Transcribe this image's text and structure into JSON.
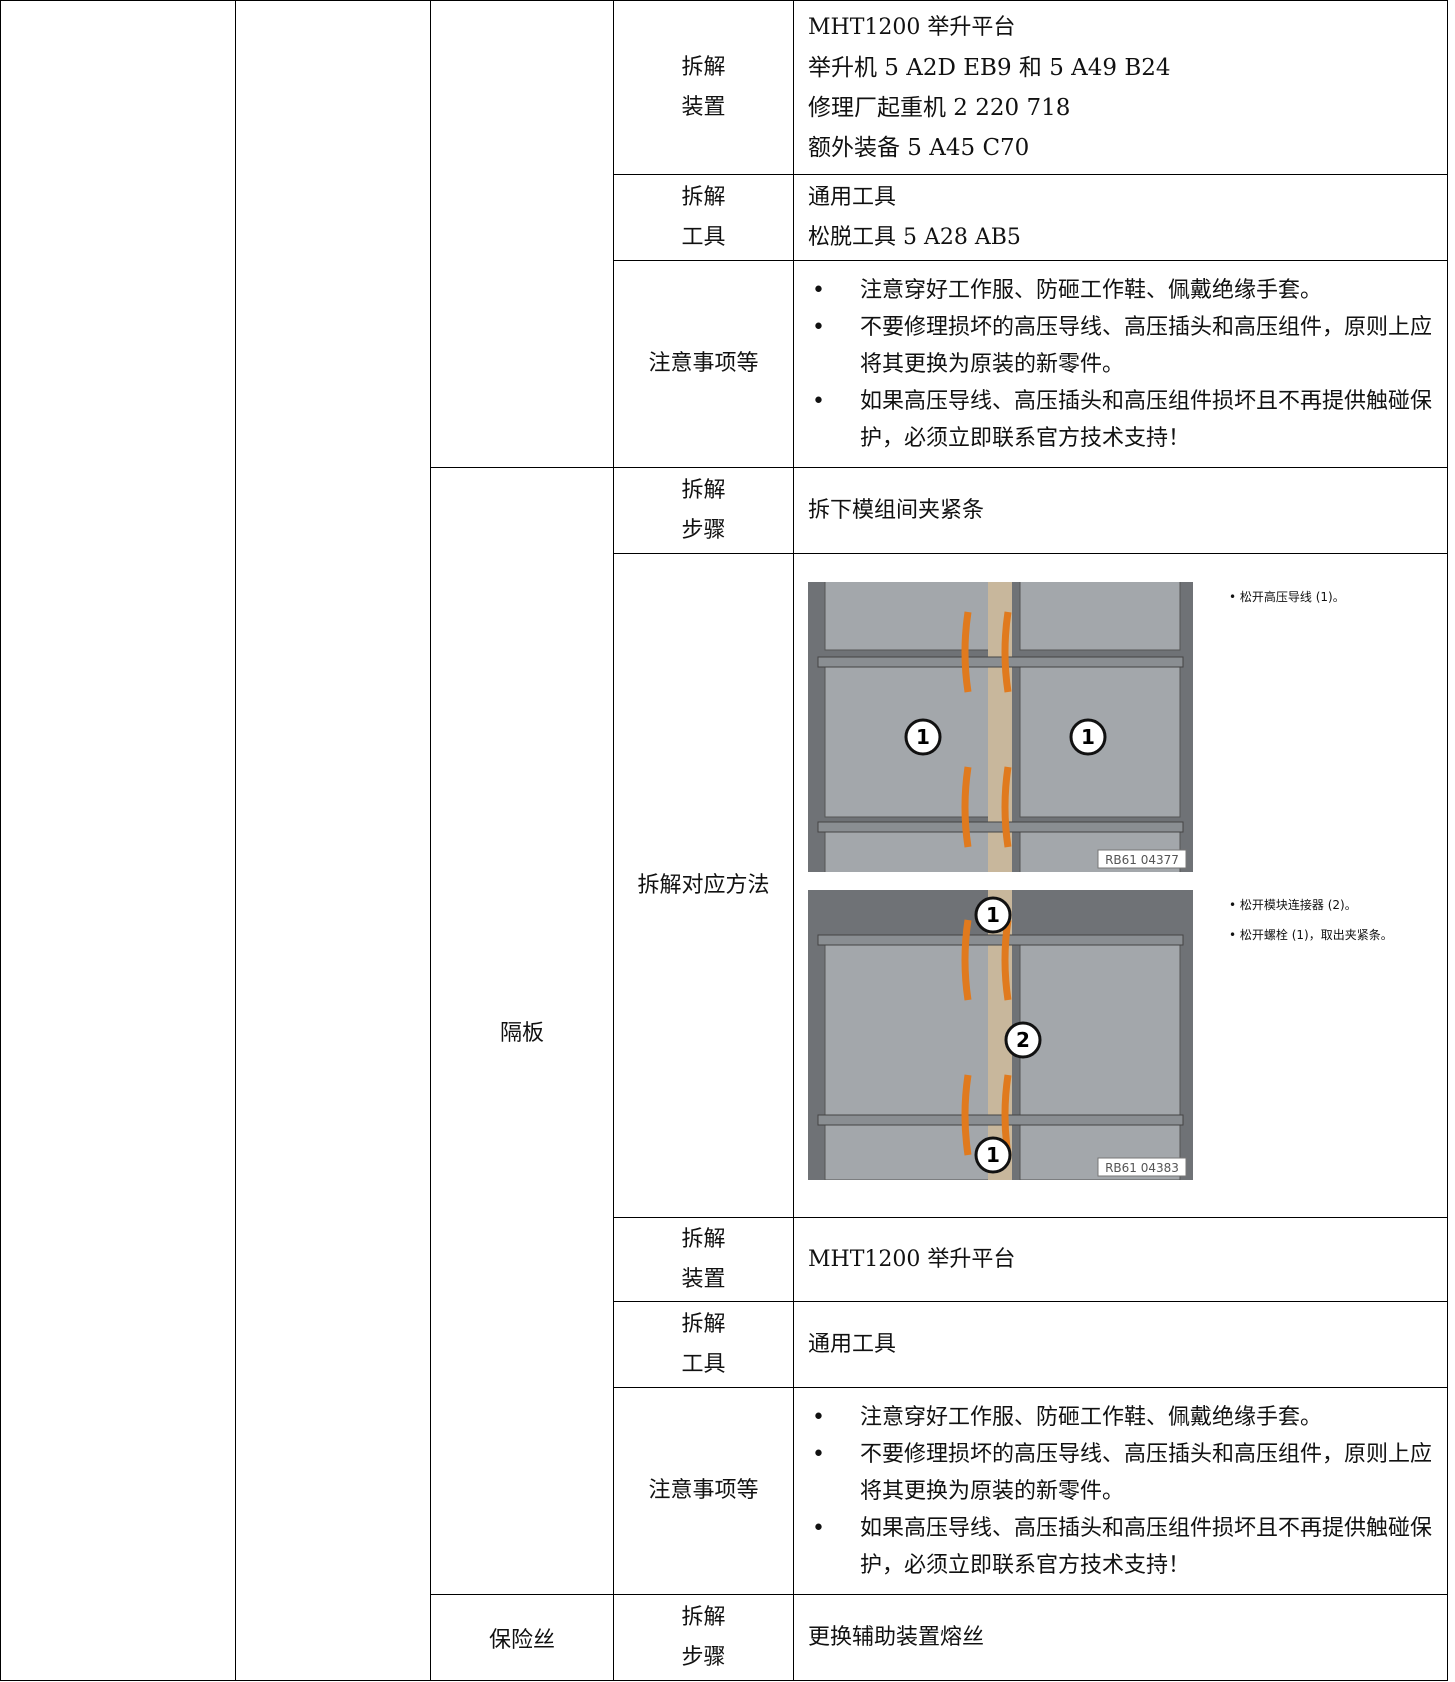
{
  "groups": [
    {
      "rows": [
        {
          "label": [
            "拆解",
            "装置"
          ],
          "lines": [
            "MHT1200 举升平台",
            "举升机 5 A2D EB9 和 5 A49 B24",
            "修理厂起重机 2 220 718",
            "额外装备 5 A45 C70"
          ]
        },
        {
          "label": [
            "拆解",
            "工具"
          ],
          "lines": [
            "通用工具",
            "松脱工具 5 A28 AB5"
          ]
        },
        {
          "label": [
            "注意事项等"
          ],
          "bullets": [
            "注意穿好工作服、防砸工作鞋、佩戴绝缘手套。",
            "不要修理损坏的高压导线、高压插头和高压组件，原则上应将其更换为原装的新零件。",
            "如果高压导线、高压插头和高压组件损坏且不再提供触碰保护，必须立即联系官方技术支持！"
          ]
        }
      ]
    },
    {
      "part": "隔板",
      "rows": [
        {
          "label": [
            "拆解",
            "步骤"
          ],
          "lines": [
            "拆下模组间夹紧条"
          ]
        },
        {
          "label": [
            "拆解对应方法"
          ],
          "figures": [
            {
              "callouts": [
                "1",
                "1"
              ],
              "code": "RB61 04377",
              "notes": [
                "松开高压导线 (1)。"
              ]
            },
            {
              "callouts": [
                "1",
                "2",
                "1"
              ],
              "code": "RB61 04383",
              "notes": [
                "松开模块连接器 (2)。",
                "松开螺栓 (1)，取出夹紧条。"
              ]
            }
          ]
        },
        {
          "label": [
            "拆解",
            "装置"
          ],
          "lines": [
            "MHT1200 举升平台"
          ]
        },
        {
          "label": [
            "拆解",
            "工具"
          ],
          "lines": [
            "通用工具"
          ]
        },
        {
          "label": [
            "注意事项等"
          ],
          "bullets": [
            "注意穿好工作服、防砸工作鞋、佩戴绝缘手套。",
            "不要修理损坏的高压导线、高压插头和高压组件，原则上应将其更换为原装的新零件。",
            "如果高压导线、高压插头和高压组件损坏且不再提供触碰保护，必须立即联系官方技术支持！"
          ]
        }
      ]
    },
    {
      "part": "保险丝",
      "rows": [
        {
          "label": [
            "拆解",
            "步骤"
          ],
          "lines": [
            "更换辅助装置熔丝"
          ]
        }
      ]
    }
  ]
}
